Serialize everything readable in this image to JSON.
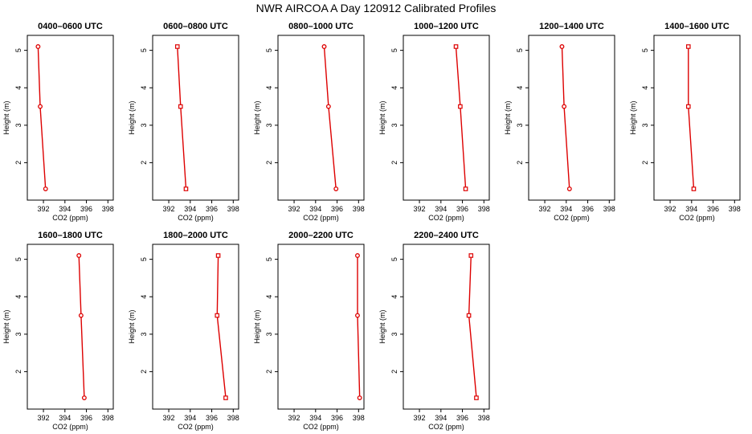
{
  "title": "NWR AIRCOA A  Day 120912  Calibrated Profiles",
  "colors": {
    "series": "#dd0000",
    "axis": "#000000"
  },
  "chart_data": [
    {
      "type": "line",
      "title": "0400–0600 UTC",
      "xlabel": "CO2 (ppm)",
      "ylabel": "Height (m)",
      "xlim": [
        390.5,
        398.5
      ],
      "ylim": [
        1.0,
        5.4
      ],
      "xticks": [
        "392",
        "394",
        "396",
        "398"
      ],
      "yticks": [
        "2",
        "3",
        "4",
        "5"
      ],
      "grid": false,
      "legend": "none",
      "series": [
        {
          "points": [
            {
              "x": 391.5,
              "y": 5.1
            },
            {
              "x": 391.7,
              "y": 3.5
            },
            {
              "x": 392.2,
              "y": 1.3
            }
          ]
        }
      ]
    },
    {
      "type": "line",
      "title": "0600–0800 UTC",
      "xlabel": "CO2 (ppm)",
      "ylabel": "Height (m)",
      "xlim": [
        390.5,
        398.5
      ],
      "ylim": [
        1.0,
        5.4
      ],
      "xticks": [
        "392",
        "394",
        "396",
        "398"
      ],
      "yticks": [
        "2",
        "3",
        "4",
        "5"
      ],
      "grid": false,
      "legend": "none",
      "series": [
        {
          "points": [
            {
              "x": 392.8,
              "y": 5.1
            },
            {
              "x": 393.1,
              "y": 3.5
            },
            {
              "x": 393.6,
              "y": 1.3
            }
          ]
        }
      ]
    },
    {
      "type": "line",
      "title": "0800–1000 UTC",
      "xlabel": "CO2 (ppm)",
      "ylabel": "Height (m)",
      "xlim": [
        390.5,
        398.5
      ],
      "ylim": [
        1.0,
        5.4
      ],
      "xticks": [
        "392",
        "394",
        "396",
        "398"
      ],
      "yticks": [
        "2",
        "3",
        "4",
        "5"
      ],
      "grid": false,
      "legend": "none",
      "series": [
        {
          "points": [
            {
              "x": 394.8,
              "y": 5.1
            },
            {
              "x": 395.2,
              "y": 3.5
            },
            {
              "x": 395.9,
              "y": 1.3
            }
          ]
        }
      ]
    },
    {
      "type": "line",
      "title": "1000–1200 UTC",
      "xlabel": "CO2 (ppm)",
      "ylabel": "Height (m)",
      "xlim": [
        390.5,
        398.5
      ],
      "ylim": [
        1.0,
        5.4
      ],
      "xticks": [
        "392",
        "394",
        "396",
        "398"
      ],
      "yticks": [
        "2",
        "3",
        "4",
        "5"
      ],
      "grid": false,
      "legend": "none",
      "series": [
        {
          "points": [
            {
              "x": 395.4,
              "y": 5.1
            },
            {
              "x": 395.8,
              "y": 3.5
            },
            {
              "x": 396.3,
              "y": 1.3
            }
          ]
        }
      ]
    },
    {
      "type": "line",
      "title": "1200–1400 UTC",
      "xlabel": "CO2 (ppm)",
      "ylabel": "Height (m)",
      "xlim": [
        390.5,
        398.5
      ],
      "ylim": [
        1.0,
        5.4
      ],
      "xticks": [
        "392",
        "394",
        "396",
        "398"
      ],
      "yticks": [
        "2",
        "3",
        "4",
        "5"
      ],
      "grid": false,
      "legend": "none",
      "series": [
        {
          "points": [
            {
              "x": 393.6,
              "y": 5.1
            },
            {
              "x": 393.8,
              "y": 3.5
            },
            {
              "x": 394.3,
              "y": 1.3
            }
          ]
        }
      ]
    },
    {
      "type": "line",
      "title": "1400–1600 UTC",
      "xlabel": "CO2 (ppm)",
      "ylabel": "Height (m)",
      "xlim": [
        390.5,
        398.5
      ],
      "ylim": [
        1.0,
        5.4
      ],
      "xticks": [
        "392",
        "394",
        "396",
        "398"
      ],
      "yticks": [
        "2",
        "3",
        "4",
        "5"
      ],
      "grid": false,
      "legend": "none",
      "series": [
        {
          "points": [
            {
              "x": 393.7,
              "y": 5.1
            },
            {
              "x": 393.7,
              "y": 3.5
            },
            {
              "x": 394.2,
              "y": 1.3
            }
          ]
        }
      ]
    },
    {
      "type": "line",
      "title": "1600–1800 UTC",
      "xlabel": "CO2 (ppm)",
      "ylabel": "Height (m)",
      "xlim": [
        390.5,
        398.5
      ],
      "ylim": [
        1.0,
        5.4
      ],
      "xticks": [
        "392",
        "394",
        "396",
        "398"
      ],
      "yticks": [
        "2",
        "3",
        "4",
        "5"
      ],
      "grid": false,
      "legend": "none",
      "series": [
        {
          "points": [
            {
              "x": 395.3,
              "y": 5.1
            },
            {
              "x": 395.5,
              "y": 3.5
            },
            {
              "x": 395.8,
              "y": 1.3
            }
          ]
        }
      ]
    },
    {
      "type": "line",
      "title": "1800–2000 UTC",
      "xlabel": "CO2 (ppm)",
      "ylabel": "Height (m)",
      "xlim": [
        390.5,
        398.5
      ],
      "ylim": [
        1.0,
        5.4
      ],
      "xticks": [
        "392",
        "394",
        "396",
        "398"
      ],
      "yticks": [
        "2",
        "3",
        "4",
        "5"
      ],
      "grid": false,
      "legend": "none",
      "series": [
        {
          "points": [
            {
              "x": 396.6,
              "y": 5.1
            },
            {
              "x": 396.5,
              "y": 3.5
            },
            {
              "x": 397.3,
              "y": 1.3
            }
          ]
        }
      ]
    },
    {
      "type": "line",
      "title": "2000–2200 UTC",
      "xlabel": "CO2 (ppm)",
      "ylabel": "Height (m)",
      "xlim": [
        390.5,
        398.5
      ],
      "ylim": [
        1.0,
        5.4
      ],
      "xticks": [
        "392",
        "394",
        "396",
        "398"
      ],
      "yticks": [
        "2",
        "3",
        "4",
        "5"
      ],
      "grid": false,
      "legend": "none",
      "series": [
        {
          "points": [
            {
              "x": 397.9,
              "y": 5.1
            },
            {
              "x": 397.9,
              "y": 3.5
            },
            {
              "x": 398.1,
              "y": 1.3
            }
          ]
        }
      ]
    },
    {
      "type": "line",
      "title": "2200–2400 UTC",
      "xlabel": "CO2 (ppm)",
      "ylabel": "Height (m)",
      "xlim": [
        390.5,
        398.5
      ],
      "ylim": [
        1.0,
        5.4
      ],
      "xticks": [
        "392",
        "394",
        "396",
        "398"
      ],
      "yticks": [
        "2",
        "3",
        "4",
        "5"
      ],
      "grid": false,
      "legend": "none",
      "series": [
        {
          "points": [
            {
              "x": 396.8,
              "y": 5.1
            },
            {
              "x": 396.6,
              "y": 3.5
            },
            {
              "x": 397.3,
              "y": 1.3
            }
          ]
        }
      ]
    }
  ]
}
